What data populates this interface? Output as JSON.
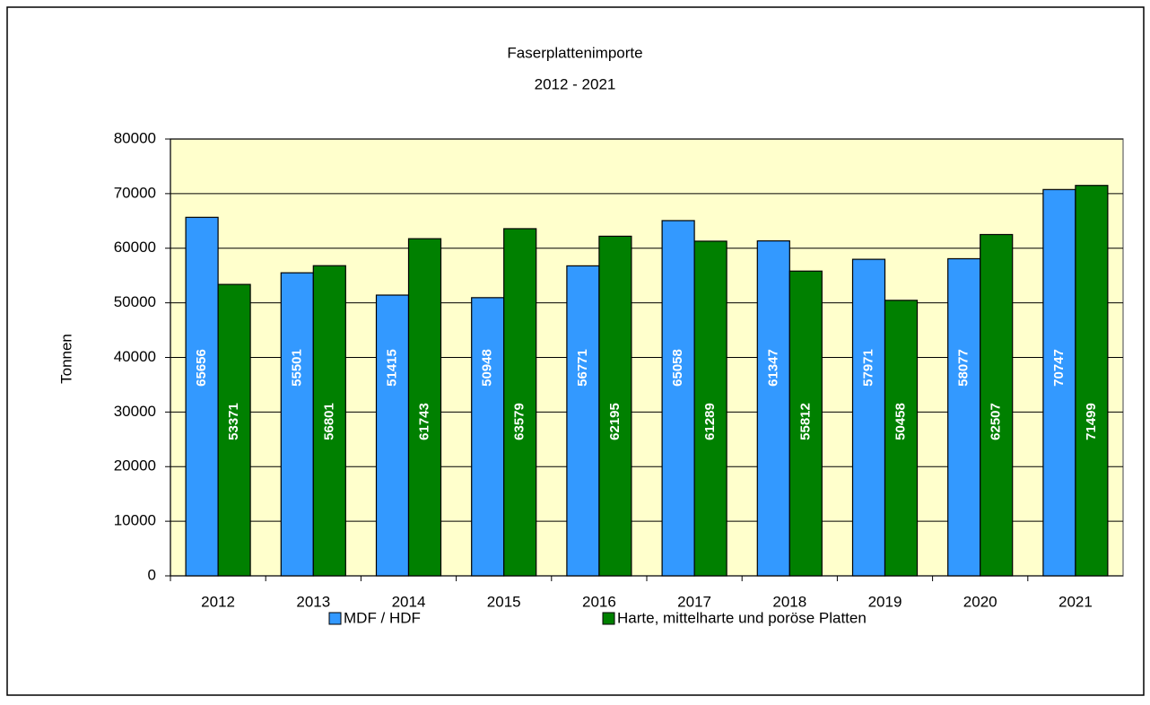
{
  "chart_data": {
    "type": "bar",
    "title": "Faserplattenimporte",
    "subtitle": "2012 - 2021",
    "y_label": "Tonnen",
    "categories": [
      "2012",
      "2013",
      "2014",
      "2015",
      "2016",
      "2017",
      "2018",
      "2019",
      "2020",
      "2021"
    ],
    "series": [
      {
        "name": "MDF / HDF",
        "color": "#3399ff",
        "values": [
          65656,
          55501,
          51415,
          50948,
          56771,
          65058,
          61347,
          57971,
          58077,
          70747
        ]
      },
      {
        "name": "Harte, mittelharte und poröse Platten",
        "color": "#008000",
        "values": [
          53371,
          56801,
          61743,
          63579,
          62195,
          61289,
          55812,
          50458,
          62507,
          71499
        ]
      }
    ],
    "ylim": [
      0,
      80000
    ],
    "yticks": [
      0,
      10000,
      20000,
      30000,
      40000,
      50000,
      60000,
      70000,
      80000
    ],
    "grid": true,
    "legend": "bottom"
  }
}
